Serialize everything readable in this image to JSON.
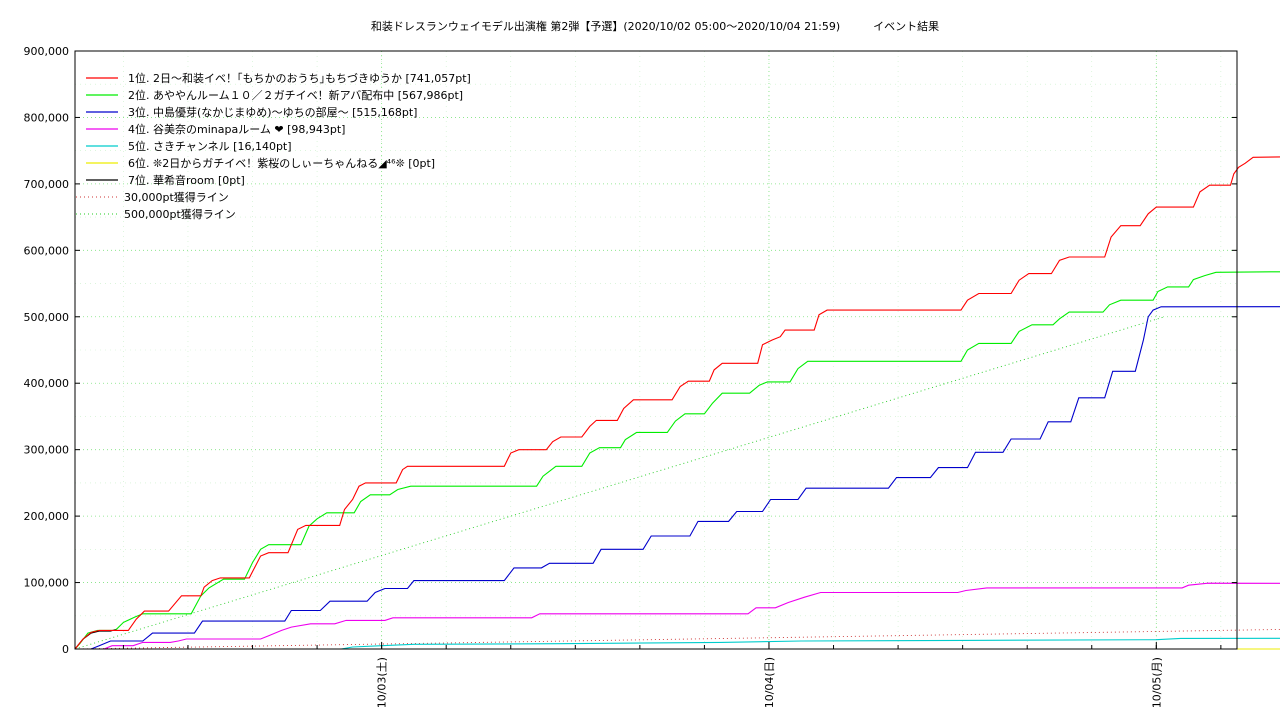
{
  "chart_data": {
    "type": "line",
    "title": "和装ドレスランウェイモデル出演権 第2弾【予選】(2020/10/02 05:00〜2020/10/04 21:59)　　　イベント結果",
    "xlabel": "",
    "ylabel": "",
    "x_unit": "hours since 2020/10/02 00:00",
    "xlim": [
      5,
      77
    ],
    "ylim": [
      0,
      900000
    ],
    "y_ticks": [
      {
        "value": 0,
        "label": "0"
      },
      {
        "value": 100000,
        "label": "100,000"
      },
      {
        "value": 200000,
        "label": "200,000"
      },
      {
        "value": 300000,
        "label": "300,000"
      },
      {
        "value": 400000,
        "label": "400,000"
      },
      {
        "value": 500000,
        "label": "500,000"
      },
      {
        "value": 600000,
        "label": "600,000"
      },
      {
        "value": 700000,
        "label": "700,000"
      },
      {
        "value": 800000,
        "label": "800,000"
      },
      {
        "value": 900000,
        "label": "900,000"
      }
    ],
    "x_ticks": [
      {
        "value": 24,
        "label": "10/03(土)"
      },
      {
        "value": 48,
        "label": "10/04(日)"
      },
      {
        "value": 72,
        "label": "10/05(月)"
      }
    ],
    "grid": true,
    "legend_position": "top-left",
    "series": [
      {
        "name": "1位. 2日〜和装イベ！｢もちかのおうち｣もちづきゆうか [741,057pt]",
        "color": "#ff0000",
        "style": "solid",
        "points": [
          [
            5,
            0
          ],
          [
            5.5,
            15000
          ],
          [
            6,
            25000
          ],
          [
            6.5,
            28000
          ],
          [
            8.3,
            28000
          ],
          [
            8.8,
            45000
          ],
          [
            9.3,
            57000
          ],
          [
            10.8,
            57000
          ],
          [
            11.6,
            80000
          ],
          [
            12.8,
            80000
          ],
          [
            13,
            93000
          ],
          [
            13.5,
            103000
          ],
          [
            14,
            107000
          ],
          [
            15.8,
            107000
          ],
          [
            16.5,
            140000
          ],
          [
            17,
            145000
          ],
          [
            18.2,
            145000
          ],
          [
            18.8,
            180000
          ],
          [
            19.3,
            186000
          ],
          [
            21.4,
            186000
          ],
          [
            21.7,
            210000
          ],
          [
            22.2,
            225000
          ],
          [
            22.6,
            245000
          ],
          [
            23,
            250000
          ],
          [
            24.9,
            250000
          ],
          [
            25.3,
            270000
          ],
          [
            25.6,
            275000
          ],
          [
            31.6,
            275000
          ],
          [
            32,
            295000
          ],
          [
            32.5,
            300000
          ],
          [
            34.2,
            300000
          ],
          [
            34.6,
            312000
          ],
          [
            35.1,
            319000
          ],
          [
            36.4,
            319000
          ],
          [
            36.9,
            335000
          ],
          [
            37.3,
            344000
          ],
          [
            38.6,
            344000
          ],
          [
            39,
            362000
          ],
          [
            39.6,
            375000
          ],
          [
            42,
            375000
          ],
          [
            42.5,
            395000
          ],
          [
            43,
            403000
          ],
          [
            44.3,
            403000
          ],
          [
            44.6,
            420000
          ],
          [
            45.1,
            430000
          ],
          [
            47.3,
            430000
          ],
          [
            47.6,
            458000
          ],
          [
            48.2,
            465000
          ],
          [
            48.7,
            470000
          ],
          [
            49,
            480000
          ],
          [
            50.8,
            480000
          ],
          [
            51.1,
            503000
          ],
          [
            51.6,
            510000
          ],
          [
            59.9,
            510000
          ],
          [
            60.3,
            525000
          ],
          [
            61,
            535000
          ],
          [
            63,
            535000
          ],
          [
            63.5,
            555000
          ],
          [
            64.1,
            565000
          ],
          [
            65.5,
            565000
          ],
          [
            66,
            585000
          ],
          [
            66.6,
            590000
          ],
          [
            68.8,
            590000
          ],
          [
            69.2,
            620000
          ],
          [
            69.8,
            637000
          ],
          [
            71,
            637000
          ],
          [
            71.5,
            655000
          ],
          [
            72,
            665000
          ],
          [
            74.3,
            665000
          ],
          [
            74.7,
            688000
          ],
          [
            75.3,
            698000
          ],
          [
            76.6,
            698000
          ],
          [
            76.8,
            715000
          ],
          [
            77.1,
            725000
          ],
          [
            77.5,
            731000
          ],
          [
            78,
            740000
          ],
          [
            81,
            741057
          ]
        ]
      },
      {
        "name": "2位. あややんルーム１０／２ガチイベ！新アバ配布中 [567,986pt]",
        "color": "#00ee00",
        "style": "solid",
        "points": [
          [
            5,
            0
          ],
          [
            5.3,
            8000
          ],
          [
            5.8,
            24000
          ],
          [
            6.4,
            28000
          ],
          [
            7.5,
            28000
          ],
          [
            8,
            40000
          ],
          [
            8.7,
            48000
          ],
          [
            9.2,
            53000
          ],
          [
            12.2,
            53000
          ],
          [
            12.8,
            80000
          ],
          [
            13.3,
            92000
          ],
          [
            14.2,
            105000
          ],
          [
            15.5,
            105000
          ],
          [
            16,
            130000
          ],
          [
            16.5,
            150000
          ],
          [
            17,
            157000
          ],
          [
            19,
            157000
          ],
          [
            19.5,
            185000
          ],
          [
            20,
            196000
          ],
          [
            20.6,
            205000
          ],
          [
            22.3,
            205000
          ],
          [
            22.7,
            222000
          ],
          [
            23.3,
            232000
          ],
          [
            24.5,
            232000
          ],
          [
            25,
            240000
          ],
          [
            25.8,
            245000
          ],
          [
            33.6,
            245000
          ],
          [
            34,
            260000
          ],
          [
            34.8,
            275000
          ],
          [
            36.4,
            275000
          ],
          [
            36.9,
            295000
          ],
          [
            37.5,
            303000
          ],
          [
            38.8,
            303000
          ],
          [
            39.1,
            315000
          ],
          [
            39.8,
            326000
          ],
          [
            41.7,
            326000
          ],
          [
            42.2,
            343000
          ],
          [
            42.8,
            354000
          ],
          [
            44,
            354000
          ],
          [
            44.5,
            370000
          ],
          [
            45.1,
            385000
          ],
          [
            46.8,
            385000
          ],
          [
            47.4,
            397000
          ],
          [
            47.9,
            402000
          ],
          [
            49.3,
            402000
          ],
          [
            49.8,
            422000
          ],
          [
            50.4,
            433000
          ],
          [
            59.9,
            433000
          ],
          [
            60.3,
            450000
          ],
          [
            61,
            460000
          ],
          [
            63,
            460000
          ],
          [
            63.5,
            478000
          ],
          [
            64.3,
            488000
          ],
          [
            65.6,
            488000
          ],
          [
            66,
            497000
          ],
          [
            66.6,
            507000
          ],
          [
            68.7,
            507000
          ],
          [
            69.1,
            518000
          ],
          [
            69.8,
            525000
          ],
          [
            71.8,
            525000
          ],
          [
            72.1,
            538000
          ],
          [
            72.7,
            545000
          ],
          [
            74,
            545000
          ],
          [
            74.3,
            556000
          ],
          [
            75,
            562000
          ],
          [
            75.7,
            567000
          ],
          [
            81,
            567986
          ]
        ]
      },
      {
        "name": "3位. 中島優芽(なかじまゆめ)〜ゆちの部屋〜 [515,168pt]",
        "color": "#0000cc",
        "style": "solid",
        "points": [
          [
            5,
            0
          ],
          [
            6,
            0
          ],
          [
            6.5,
            5000
          ],
          [
            7.2,
            12000
          ],
          [
            9.2,
            12000
          ],
          [
            9.8,
            24000
          ],
          [
            12.4,
            24000
          ],
          [
            12.9,
            42000
          ],
          [
            18,
            42000
          ],
          [
            18.4,
            58000
          ],
          [
            20.2,
            58000
          ],
          [
            20.8,
            72000
          ],
          [
            23.1,
            72000
          ],
          [
            23.6,
            85000
          ],
          [
            24.2,
            91000
          ],
          [
            25.6,
            91000
          ],
          [
            26,
            103000
          ],
          [
            31.6,
            103000
          ],
          [
            32.2,
            122000
          ],
          [
            33.9,
            122000
          ],
          [
            34.4,
            129000
          ],
          [
            37.1,
            129000
          ],
          [
            37.6,
            150000
          ],
          [
            40.2,
            150000
          ],
          [
            40.7,
            170000
          ],
          [
            43.1,
            170000
          ],
          [
            43.6,
            192000
          ],
          [
            45.5,
            192000
          ],
          [
            46,
            207000
          ],
          [
            47.6,
            207000
          ],
          [
            48.1,
            225000
          ],
          [
            49.8,
            225000
          ],
          [
            50.3,
            242000
          ],
          [
            55.4,
            242000
          ],
          [
            55.9,
            258000
          ],
          [
            58,
            258000
          ],
          [
            58.5,
            273000
          ],
          [
            60.3,
            273000
          ],
          [
            60.8,
            296000
          ],
          [
            62.5,
            296000
          ],
          [
            63,
            316000
          ],
          [
            64.8,
            316000
          ],
          [
            65.3,
            342000
          ],
          [
            66.7,
            342000
          ],
          [
            67.2,
            378000
          ],
          [
            68.8,
            378000
          ],
          [
            69.3,
            418000
          ],
          [
            70.7,
            418000
          ],
          [
            71.2,
            465000
          ],
          [
            71.5,
            500000
          ],
          [
            71.8,
            510000
          ],
          [
            72.3,
            515000
          ],
          [
            81,
            515168
          ]
        ]
      },
      {
        "name": "4位. 谷美奈のminapaルーム ❤ [98,943pt]",
        "color": "#ee00ee",
        "style": "solid",
        "points": [
          [
            5,
            0
          ],
          [
            6.8,
            0
          ],
          [
            7.3,
            5000
          ],
          [
            8.6,
            5000
          ],
          [
            9.2,
            10000
          ],
          [
            10.9,
            10000
          ],
          [
            11.4,
            12000
          ],
          [
            11.9,
            15000
          ],
          [
            16.5,
            15000
          ],
          [
            17,
            20000
          ],
          [
            17.8,
            28000
          ],
          [
            18.4,
            33000
          ],
          [
            19.6,
            38000
          ],
          [
            21.1,
            38000
          ],
          [
            21.8,
            43000
          ],
          [
            24.2,
            43000
          ],
          [
            24.7,
            47000
          ],
          [
            33.3,
            47000
          ],
          [
            33.8,
            53000
          ],
          [
            46.7,
            53000
          ],
          [
            47.2,
            62000
          ],
          [
            48.4,
            62000
          ],
          [
            49.2,
            70000
          ],
          [
            50.2,
            78000
          ],
          [
            51.2,
            85000
          ],
          [
            59.7,
            85000
          ],
          [
            60.2,
            88000
          ],
          [
            61.5,
            92000
          ],
          [
            73.6,
            92000
          ],
          [
            74,
            96000
          ],
          [
            75.2,
            99000
          ],
          [
            81,
            98943
          ]
        ]
      },
      {
        "name": "5位. さきチャンネル [16,140pt]",
        "color": "#00cccc",
        "style": "solid",
        "points": [
          [
            5,
            0
          ],
          [
            21.5,
            0
          ],
          [
            22.2,
            3000
          ],
          [
            24,
            5000
          ],
          [
            26,
            7000
          ],
          [
            35,
            8000
          ],
          [
            45,
            10000
          ],
          [
            50,
            12000
          ],
          [
            60,
            13000
          ],
          [
            72,
            14000
          ],
          [
            73.5,
            16000
          ],
          [
            81,
            16140
          ]
        ]
      },
      {
        "name": "6位. ❊2日からガチイベ！紫桜のしぃーちゃんねる◢⁴⁶❊ [0pt]",
        "color": "#eeee00",
        "style": "solid",
        "points": [
          [
            5,
            0
          ],
          [
            81,
            0
          ]
        ]
      },
      {
        "name": "7位. 華希音room [0pt]",
        "color": "#000000",
        "style": "solid",
        "points": [
          [
            5,
            0
          ],
          [
            5.5,
            15000
          ],
          [
            6,
            24000
          ],
          [
            6.5,
            27000
          ],
          [
            7.2,
            27000
          ],
          [
            7.6,
            30000
          ]
        ]
      },
      {
        "name": "30,000pt獲得ライン",
        "color": "#cc3333",
        "style": "dotted",
        "points": [
          [
            5,
            0
          ],
          [
            81,
            30000
          ]
        ]
      },
      {
        "name": "500,000pt獲得ライン",
        "color": "#22cc22",
        "style": "dotted",
        "points": [
          [
            5,
            0
          ],
          [
            72.5,
            500000
          ]
        ]
      }
    ]
  }
}
